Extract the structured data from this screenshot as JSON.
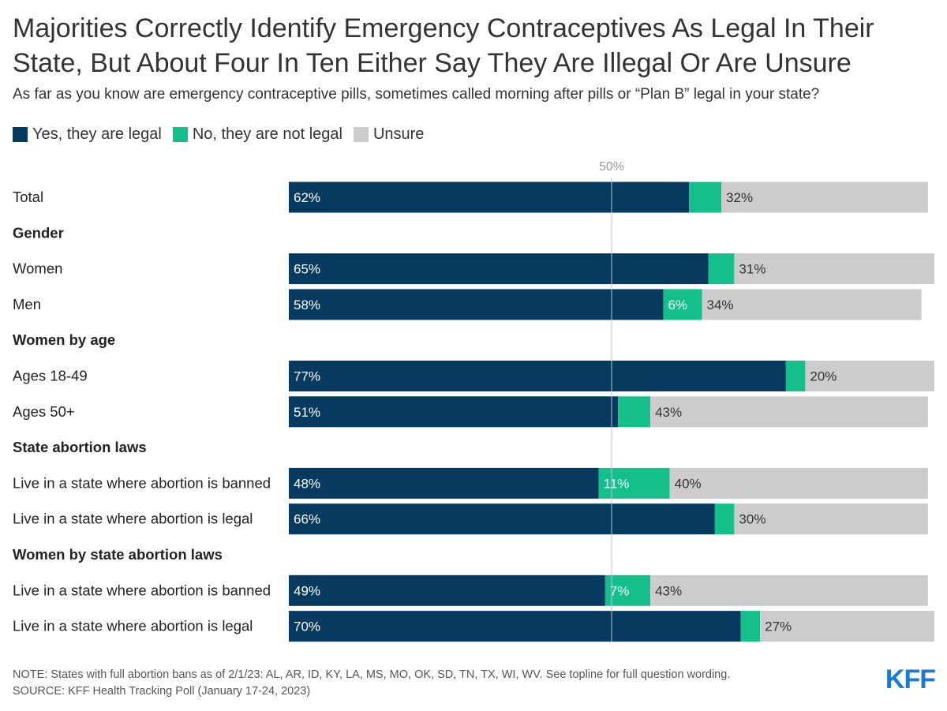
{
  "title": "Majorities Correctly Identify Emergency Contraceptives As Legal In Their State, But About Four In Ten Either Say They Are Illegal Or Are Unsure",
  "subtitle": "As far as you know are emergency contraceptive pills, sometimes called morning after pills or “Plan B” legal in your state?",
  "reference_label": "50%",
  "notes": {
    "note": "NOTE: States with full abortion bans as of 2/1/23: AL, AR, ID, KY, LA, MS, MO, OK, SD, TN, TX, WI, WV. See topline for full question wording.",
    "source": "SOURCE: KFF Health Tracking Poll (January 17-24, 2023)"
  },
  "logo": "KFF",
  "colors": {
    "yes": "#063a5e",
    "no": "#14bf8c",
    "unsure": "#cccccc",
    "reference_line": "#b8c4d0"
  },
  "chart_data": {
    "type": "bar",
    "orientation": "horizontal",
    "stacked": true,
    "xlim": [
      0,
      100
    ],
    "reference_value": 50,
    "series": [
      {
        "name": "Yes, they are legal",
        "key": "yes"
      },
      {
        "name": "No, they are not legal",
        "key": "no"
      },
      {
        "name": "Unsure",
        "key": "unsure"
      }
    ],
    "rows": [
      {
        "label": "Total",
        "header": false,
        "yes": 62,
        "no": 5,
        "unsure": 32,
        "yes_label": "62%",
        "no_label": "",
        "unsure_label": "32%"
      },
      {
        "label": "Gender",
        "header": true
      },
      {
        "label": "Women",
        "header": false,
        "yes": 65,
        "no": 4,
        "unsure": 31,
        "yes_label": "65%",
        "no_label": "",
        "unsure_label": "31%"
      },
      {
        "label": "Men",
        "header": false,
        "yes": 58,
        "no": 6,
        "unsure": 34,
        "yes_label": "58%",
        "no_label": "6%",
        "unsure_label": "34%"
      },
      {
        "label": "Women by age",
        "header": true
      },
      {
        "label": "Ages 18-49",
        "header": false,
        "yes": 77,
        "no": 3,
        "unsure": 20,
        "yes_label": "77%",
        "no_label": "",
        "unsure_label": "20%"
      },
      {
        "label": "Ages 50+",
        "header": false,
        "yes": 51,
        "no": 5,
        "unsure": 43,
        "yes_label": "51%",
        "no_label": "",
        "unsure_label": "43%"
      },
      {
        "label": "State abortion laws",
        "header": true
      },
      {
        "label": "Live in a state where abortion is banned",
        "header": false,
        "yes": 48,
        "no": 11,
        "unsure": 40,
        "yes_label": "48%",
        "no_label": "11%",
        "unsure_label": "40%"
      },
      {
        "label": "Live in a state where abortion is legal",
        "header": false,
        "yes": 66,
        "no": 3,
        "unsure": 30,
        "yes_label": "66%",
        "no_label": "",
        "unsure_label": "30%"
      },
      {
        "label": "Women by state abortion laws",
        "header": true
      },
      {
        "label": "Live in a state where abortion is banned",
        "header": false,
        "yes": 49,
        "no": 7,
        "unsure": 43,
        "yes_label": "49%",
        "no_label": "7%",
        "unsure_label": "43%"
      },
      {
        "label": "Live in a state where abortion is legal",
        "header": false,
        "yes": 70,
        "no": 3,
        "unsure": 27,
        "yes_label": "70%",
        "no_label": "",
        "unsure_label": "27%"
      }
    ]
  }
}
